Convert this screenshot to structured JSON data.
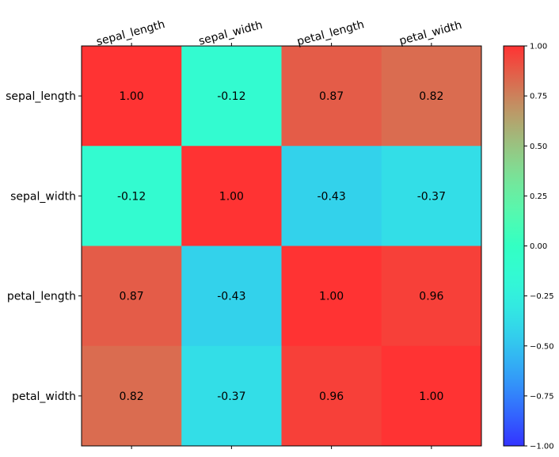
{
  "chart_data": {
    "type": "heatmap",
    "title": "",
    "xlabel": "",
    "ylabel": "",
    "x_categories": [
      "sepal_length",
      "sepal_width",
      "petal_length",
      "petal_width"
    ],
    "y_categories": [
      "sepal_length",
      "sepal_width",
      "petal_length",
      "petal_width"
    ],
    "values": [
      [
        1.0,
        -0.12,
        0.87,
        0.82
      ],
      [
        -0.12,
        1.0,
        -0.43,
        -0.37
      ],
      [
        0.87,
        -0.43,
        1.0,
        0.96
      ],
      [
        0.82,
        -0.37,
        0.96,
        1.0
      ]
    ],
    "labels": [
      [
        "1.00",
        "-0.12",
        "0.87",
        "0.82"
      ],
      [
        "-0.12",
        "1.00",
        "-0.43",
        "-0.37"
      ],
      [
        "0.87",
        "-0.43",
        "1.00",
        "0.96"
      ],
      [
        "0.82",
        "-0.37",
        "0.96",
        "1.00"
      ]
    ],
    "colormap": "rainbow",
    "alpha": 0.8,
    "vmin": -1.0,
    "vmax": 1.0,
    "colorbar_ticks": [
      1.0,
      0.75,
      0.5,
      0.25,
      0.0,
      -0.25,
      -0.5,
      -0.75,
      -1.0
    ],
    "colorbar_tick_labels": [
      "1.00",
      "0.75",
      "0.50",
      "0.25",
      "0.00",
      "−0.25",
      "−0.50",
      "−0.75",
      "−1.00"
    ]
  }
}
